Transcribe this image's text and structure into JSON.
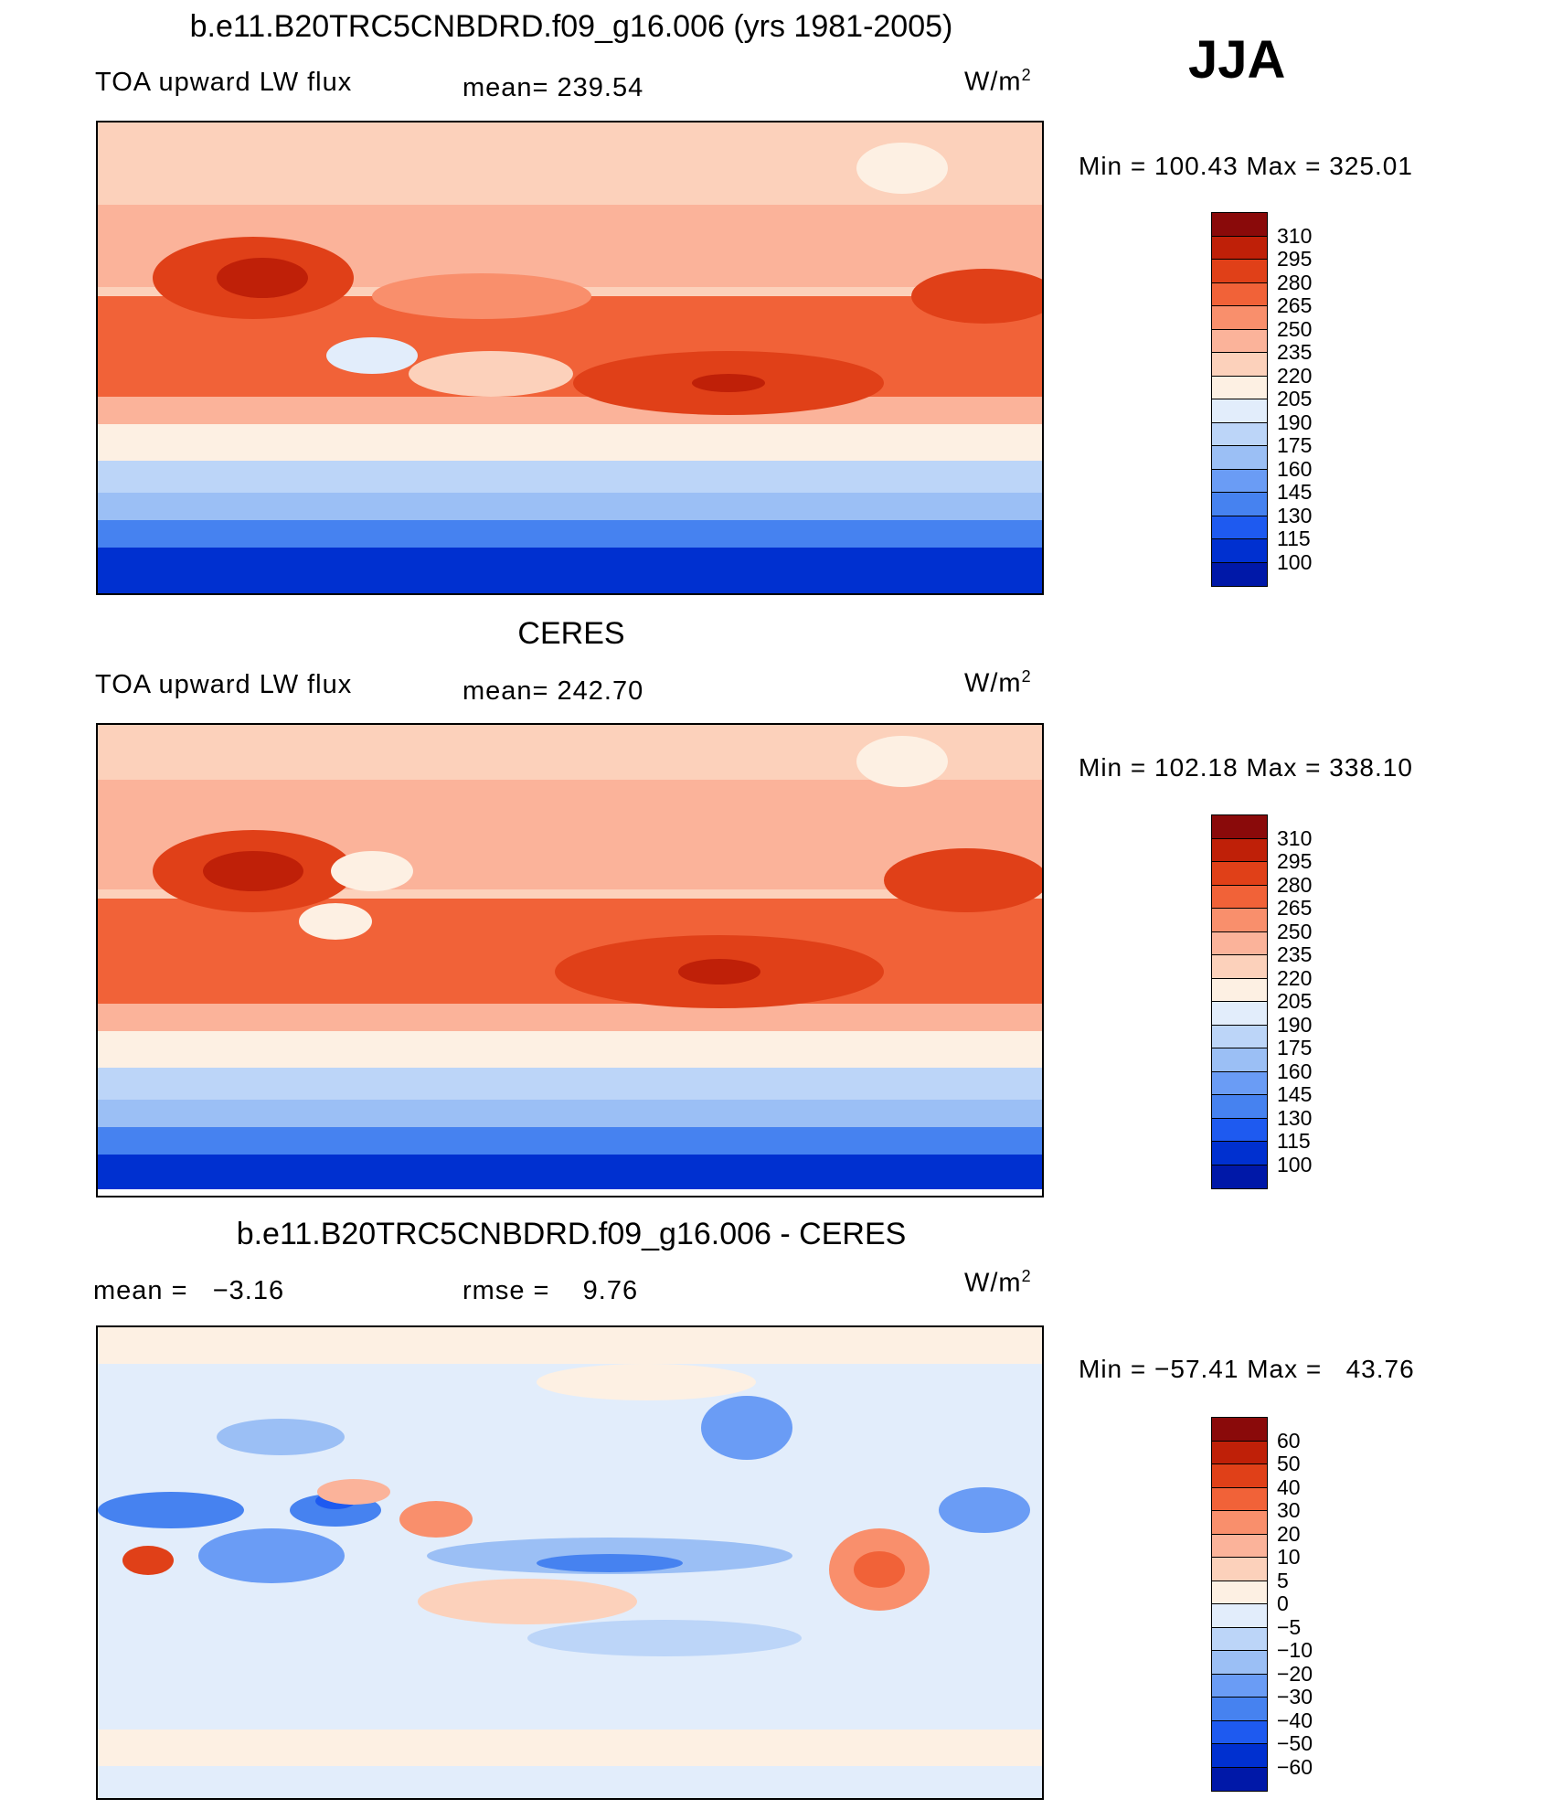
{
  "season": "JJA",
  "colors": {
    "absolute": [
      "#000080",
      "#0018a8",
      "#0030d0",
      "#1e5af0",
      "#4682f0",
      "#6a9cf5",
      "#9bbff5",
      "#bcd5f8",
      "#e2edfb",
      "#fdf0e3",
      "#fcd1bb",
      "#fbb39a",
      "#f98f6c",
      "#f16238",
      "#e04018",
      "#bf2008",
      "#8a0a0a"
    ],
    "diff": [
      "#000080",
      "#0018a8",
      "#0030d0",
      "#1e5af0",
      "#4682f0",
      "#6a9cf5",
      "#9bbff5",
      "#bcd5f8",
      "#e2edfb",
      "#fdf0e3",
      "#fcd1bb",
      "#fbb39a",
      "#f98f6c",
      "#f16238",
      "#e04018",
      "#bf2008",
      "#8a0a0a"
    ]
  },
  "panels": [
    {
      "title": "b.e11.B20TRC5CNBDRD.f09_g16.006 (yrs 1981-2005)",
      "left_label": "TOA upward LW flux",
      "mid_label": "mean= 239.54",
      "units": "W/m",
      "units_sup": "2",
      "minmax": "Min = 100.43 Max = 325.01",
      "levels": [
        "310",
        "295",
        "280",
        "265",
        "250",
        "235",
        "220",
        "205",
        "190",
        "175",
        "160",
        "145",
        "130",
        "115",
        "100"
      ]
    },
    {
      "title": "CERES",
      "left_label": "TOA upward LW flux",
      "mid_label": "mean= 242.70",
      "units": "W/m",
      "units_sup": "2",
      "minmax": "Min = 102.18 Max = 338.10",
      "levels": [
        "310",
        "295",
        "280",
        "265",
        "250",
        "235",
        "220",
        "205",
        "190",
        "175",
        "160",
        "145",
        "130",
        "115",
        "100"
      ]
    },
    {
      "title": "b.e11.B20TRC5CNBDRD.f09_g16.006 - CERES",
      "left_label": "mean =   −3.16",
      "mid_label": "rmse =    9.76",
      "units": "W/m",
      "units_sup": "2",
      "minmax": "Min = −57.41 Max =   43.76",
      "levels": [
        "60",
        "50",
        "40",
        "30",
        "20",
        "10",
        "5",
        "0",
        "−5",
        "−10",
        "−20",
        "−30",
        "−40",
        "−50",
        "−60"
      ]
    }
  ]
}
